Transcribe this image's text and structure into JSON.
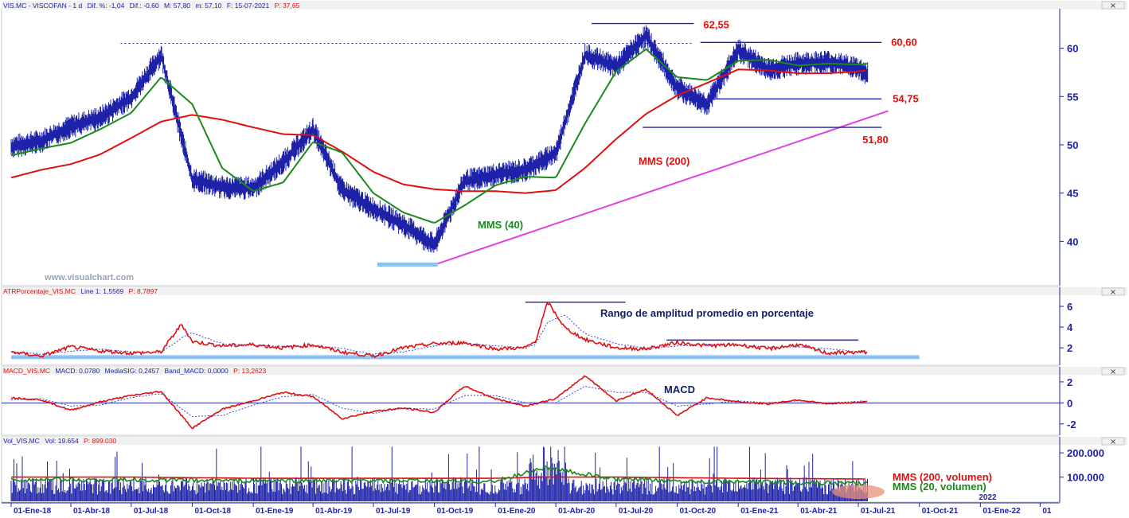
{
  "colors": {
    "price": "#1d22a8",
    "mms40": "#1a8a1a",
    "mms200": "#e01010",
    "trendline": "#e040e0",
    "level_line": "#1d22a8",
    "support_band": "#8fc3ef",
    "volume": "#1d22a8",
    "axis": "#1d22a8"
  },
  "icons": {
    "close": "close-icon",
    "close_glyph": "×"
  },
  "watermark": "www.visualchart.com",
  "chart_data": [
    {
      "type": "line",
      "panel": "price",
      "header": {
        "symbol": "VIS.MC - VISCOFAN - 1 d",
        "dif_pct": "Dif. %: -1,04",
        "dif": "Dif.: -0,60",
        "max": "M: 57,80",
        "min": "m: 57,10",
        "date": "F: 15-07-2021",
        "last": "P: 37,65"
      },
      "ylim": [
        35.5,
        64
      ],
      "yticks": [
        40,
        45,
        50,
        55,
        60
      ],
      "x": [
        "2018-01-01",
        "2018-02-15",
        "2018-04-01",
        "2018-05-15",
        "2018-07-01",
        "2018-08-15",
        "2018-10-01",
        "2018-11-15",
        "2019-01-01",
        "2019-02-15",
        "2019-04-01",
        "2019-05-15",
        "2019-07-01",
        "2019-08-15",
        "2019-10-01",
        "2019-11-15",
        "2020-01-01",
        "2020-02-15",
        "2020-04-01",
        "2020-05-15",
        "2020-07-01",
        "2020-08-15",
        "2020-10-01",
        "2020-11-15",
        "2021-01-01",
        "2021-02-15",
        "2021-04-01",
        "2021-05-15",
        "2021-07-01",
        "2021-07-15"
      ],
      "series": [
        {
          "name": "",
          "role": "price",
          "values": [
            49.8,
            50.4,
            51.9,
            52.8,
            54.9,
            59.3,
            46.4,
            45.6,
            45.5,
            48.2,
            51.6,
            45.3,
            43.4,
            41.7,
            39.6,
            46.2,
            46.9,
            47.4,
            49.1,
            59.3,
            58.1,
            61.3,
            55.9,
            54.2,
            59.8,
            57.8,
            58.4,
            58.6,
            57.9,
            57.4
          ]
        },
        {
          "name": "MMS (40)",
          "values": [
            48.9,
            49.6,
            50.2,
            51.6,
            53.3,
            57.0,
            54.2,
            47.6,
            45.2,
            46.1,
            50.3,
            49.2,
            45.0,
            43.0,
            41.9,
            43.7,
            45.8,
            46.7,
            46.6,
            52.2,
            57.6,
            59.9,
            57.0,
            56.7,
            58.7,
            58.8,
            58.2,
            58.4,
            58.3,
            58.4
          ]
        },
        {
          "name": "MMS (200)",
          "values": [
            46.6,
            47.4,
            48.0,
            49.0,
            50.7,
            52.4,
            53.1,
            52.6,
            51.8,
            51.1,
            51.0,
            49.3,
            47.2,
            45.9,
            45.4,
            45.2,
            45.2,
            45.0,
            45.3,
            47.6,
            50.6,
            53.2,
            55.1,
            56.4,
            57.8,
            57.7,
            57.4,
            57.4,
            57.6,
            57.7
          ]
        }
      ],
      "overlays": {
        "resistance_dotted": 60.5,
        "level_lines": [
          {
            "label": "62,55",
            "value": 62.55,
            "from": "2020-05-25",
            "to": "2020-10-26"
          },
          {
            "label": "60,60",
            "value": 60.6,
            "from": "2020-11-05",
            "to": "2021-08-05"
          },
          {
            "label": "54,75",
            "value": 54.75,
            "from": "2020-10-13",
            "to": "2021-08-05"
          },
          {
            "label": "51,80",
            "value": 51.8,
            "from": "2020-08-10",
            "to": "2021-08-05"
          }
        ],
        "support_band": {
          "value": 37.6,
          "from": "2019-07-07",
          "to": "2019-10-06"
        },
        "trendline": {
          "from": {
            "x": "2019-10-06",
            "y": 37.7
          },
          "to": {
            "x": "2021-08-15",
            "y": 53.5
          }
        }
      },
      "annotations": {
        "mms40": "MMS (40)",
        "mms200": "MMS (200)"
      }
    },
    {
      "type": "line",
      "panel": "atr",
      "header": {
        "name": "ATRPorcentaje_VIS.MC",
        "line": "Line 1: 1,5569",
        "period": "P: 8,7897"
      },
      "title": "Rango de amplitud promedio en porcentaje",
      "ylim": [
        0.4,
        7.0
      ],
      "yticks": [
        2,
        4,
        6
      ],
      "x": [
        "2018-01-01",
        "2018-02-15",
        "2018-04-01",
        "2018-05-15",
        "2018-07-01",
        "2018-08-15",
        "2018-09-15",
        "2018-10-01",
        "2018-11-15",
        "2019-01-01",
        "2019-02-15",
        "2019-04-01",
        "2019-05-15",
        "2019-07-01",
        "2019-08-15",
        "2019-10-01",
        "2019-11-15",
        "2020-01-01",
        "2020-02-15",
        "2020-03-01",
        "2020-03-20",
        "2020-04-15",
        "2020-05-15",
        "2020-07-01",
        "2020-08-15",
        "2020-10-01",
        "2020-11-15",
        "2021-01-01",
        "2021-02-15",
        "2021-04-01",
        "2021-05-15",
        "2021-07-15"
      ],
      "series": [
        {
          "name": "",
          "values": [
            1.6,
            1.2,
            2.1,
            1.7,
            1.5,
            1.6,
            4.3,
            2.6,
            2.2,
            2.3,
            2.0,
            2.3,
            1.6,
            1.2,
            2.0,
            2.4,
            2.5,
            1.9,
            2.0,
            2.6,
            6.4,
            3.9,
            2.8,
            2.0,
            1.9,
            2.5,
            2.2,
            2.3,
            1.9,
            2.3,
            1.5,
            1.6
          ]
        }
      ],
      "overlays": {
        "peak_line": {
          "value": 6.4,
          "from": "2020-02-15",
          "to": "2020-07-15"
        },
        "range_line": {
          "value": 2.75,
          "from": "2020-09-15",
          "to": "2021-07-01"
        },
        "floor_band": {
          "value": 1.1,
          "from": "2018-01-01",
          "to": "2021-10-01"
        }
      }
    },
    {
      "type": "line",
      "panel": "macd",
      "header": {
        "name": "MACD_VIS.MC",
        "macd": "MACD: 0,0780",
        "signal": "MediaSIG: 0,2457",
        "band": "Band_MACD: 0,0000",
        "period": "P: 13,2623"
      },
      "title": "MACD",
      "ylim": [
        -3,
        2.6
      ],
      "yticks": [
        -2,
        0,
        2
      ],
      "x": [
        "2018-01-01",
        "2018-02-15",
        "2018-04-01",
        "2018-05-15",
        "2018-07-01",
        "2018-08-15",
        "2018-10-01",
        "2018-11-15",
        "2019-01-01",
        "2019-02-15",
        "2019-04-01",
        "2019-05-15",
        "2019-07-01",
        "2019-08-15",
        "2019-10-01",
        "2019-11-15",
        "2020-01-01",
        "2020-02-15",
        "2020-04-01",
        "2020-05-15",
        "2020-07-01",
        "2020-08-15",
        "2020-10-01",
        "2020-11-15",
        "2021-01-01",
        "2021-02-15",
        "2021-04-01",
        "2021-05-15",
        "2021-07-15"
      ],
      "series": [
        {
          "name": "",
          "values": [
            0.5,
            0.3,
            -0.7,
            0.1,
            0.7,
            1.1,
            -2.4,
            -0.6,
            0.2,
            1.0,
            0.6,
            -1.5,
            -0.8,
            -0.5,
            -0.9,
            1.6,
            0.4,
            -0.3,
            0.4,
            2.6,
            0.2,
            1.3,
            -1.2,
            0.5,
            0.1,
            -0.1,
            0.3,
            -0.1,
            0.1
          ]
        },
        {
          "name": "",
          "values": [
            0.3,
            0.4,
            -0.3,
            -0.2,
            0.5,
            0.9,
            -1.3,
            -1.2,
            -0.2,
            0.6,
            0.8,
            -0.5,
            -1.0,
            -0.5,
            -0.6,
            0.7,
            0.7,
            0.0,
            0.0,
            1.6,
            1.0,
            1.0,
            -0.3,
            -0.1,
            0.2,
            0.0,
            0.2,
            0.0,
            0.2
          ]
        }
      ]
    },
    {
      "type": "bar",
      "panel": "volume",
      "header": {
        "name": "Vol_VIS.MC",
        "vol": "Vol: 19.654",
        "period": "P: 899.030"
      },
      "ylim": [
        0,
        230000
      ],
      "yticks": [
        100000,
        200000
      ],
      "ytick_labels": [
        "100.000",
        "200.000"
      ],
      "bars_seed_profile": {
        "from": "2018-01-01",
        "to": "2021-07-15",
        "typical": 80000
      },
      "x": [
        "2018-01-01",
        "2018-07-01",
        "2019-01-01",
        "2019-07-01",
        "2020-01-01",
        "2020-03-15",
        "2020-07-01",
        "2021-01-01",
        "2021-07-15"
      ],
      "series": [
        {
          "name": "MMS (200, volumen)",
          "values": [
            100000,
            100000,
            95000,
            95000,
            95000,
            100000,
            100000,
            95000,
            92000
          ]
        },
        {
          "name": "MMS (20, volumen)",
          "values": [
            90000,
            88000,
            85000,
            85000,
            82000,
            140000,
            90000,
            80000,
            75000
          ]
        }
      ]
    }
  ],
  "x_axis": {
    "ticks": [
      {
        "date": "2018-01-01",
        "label": "01-Ene-18"
      },
      {
        "date": "2018-04-01",
        "label": "01-Abr-18"
      },
      {
        "date": "2018-07-01",
        "label": "01-Jul-18"
      },
      {
        "date": "2018-10-01",
        "label": "01-Oct-18"
      },
      {
        "date": "2019-01-01",
        "label": "01-Ene-19"
      },
      {
        "date": "2019-04-01",
        "label": "01-Abr-19"
      },
      {
        "date": "2019-07-01",
        "label": "01-Jul-19"
      },
      {
        "date": "2019-10-01",
        "label": "01-Oct-19"
      },
      {
        "date": "2020-01-01",
        "label": "01-Ene-20"
      },
      {
        "date": "2020-04-01",
        "label": "01-Abr-20"
      },
      {
        "date": "2020-07-01",
        "label": "01-Jul-20"
      },
      {
        "date": "2020-10-01",
        "label": "01-Oct-20"
      },
      {
        "date": "2021-01-01",
        "label": "01-Ene-21"
      },
      {
        "date": "2021-04-01",
        "label": "01-Abr-21"
      },
      {
        "date": "2021-07-01",
        "label": "01-Jul-21"
      },
      {
        "date": "2021-10-01",
        "label": "01-Oct-21"
      },
      {
        "date": "2022-01-01",
        "label": "01-Ene-22"
      },
      {
        "date": "2022-04-01",
        "label": "01"
      }
    ],
    "year_marker": {
      "date": "2022-01-01",
      "label": "2022"
    }
  }
}
